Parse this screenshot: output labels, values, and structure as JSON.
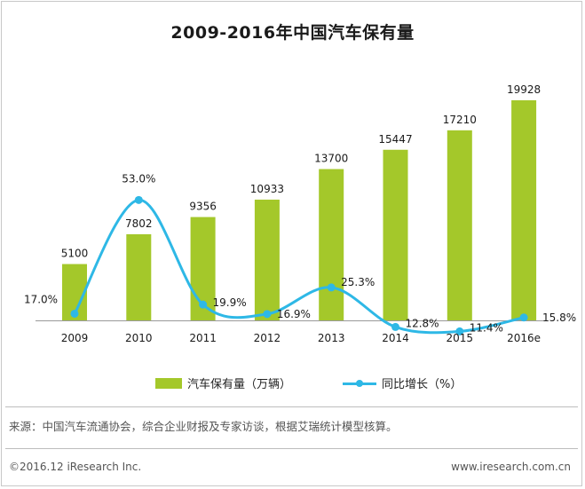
{
  "title": "2009-2016年中国汽车保有量",
  "colors": {
    "bar": "#a4c82a",
    "line": "#2eb8e6"
  },
  "legend": {
    "bar_label": "汽车保有量（万辆）",
    "line_label": "同比增长（%）"
  },
  "source_note": "来源：中国汽车流通协会，综合企业财报及专家访谈，根据艾瑞统计模型核算。",
  "footer": {
    "copyright": "©2016.12 iResearch Inc.",
    "website": "www.iresearch.com.cn"
  },
  "chart_data": {
    "type": "bar",
    "categories": [
      "2009",
      "2010",
      "2011",
      "2012",
      "2013",
      "2014",
      "2015",
      "2016e"
    ],
    "series": [
      {
        "name": "汽车保有量（万辆）",
        "type": "bar",
        "axis": "left",
        "values": [
          5100,
          7802,
          9356,
          10933,
          13700,
          15447,
          17210,
          19928
        ],
        "labels": [
          "5100",
          "7802",
          "9356",
          "10933",
          "13700",
          "15447",
          "17210",
          "19928"
        ]
      },
      {
        "name": "同比增长（%）",
        "type": "line",
        "axis": "right",
        "smooth": true,
        "values": [
          17.0,
          53.0,
          19.9,
          16.9,
          25.3,
          12.8,
          11.4,
          15.8
        ],
        "labels": [
          "17.0%",
          "53.0%",
          "19.9%",
          "16.9%",
          "25.3%",
          "12.8%",
          "11.4%",
          "15.8%"
        ]
      }
    ],
    "left_axis_visible": false,
    "right_axis_visible": false,
    "grid": false,
    "legend_position": "bottom"
  }
}
